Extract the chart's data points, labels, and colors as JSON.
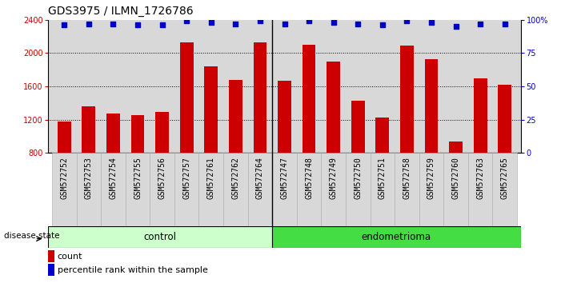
{
  "title": "GDS3975 / ILMN_1726786",
  "categories": [
    "GSM572752",
    "GSM572753",
    "GSM572754",
    "GSM572755",
    "GSM572756",
    "GSM572757",
    "GSM572761",
    "GSM572762",
    "GSM572764",
    "GSM572747",
    "GSM572748",
    "GSM572749",
    "GSM572750",
    "GSM572751",
    "GSM572758",
    "GSM572759",
    "GSM572760",
    "GSM572763",
    "GSM572765"
  ],
  "bar_values": [
    1175,
    1360,
    1270,
    1255,
    1290,
    2130,
    1840,
    1680,
    2130,
    1670,
    2100,
    1900,
    1430,
    1220,
    2090,
    1930,
    940,
    1700,
    1620
  ],
  "percentile_values": [
    96,
    97,
    97,
    96,
    96,
    99,
    98,
    97,
    99,
    97,
    99,
    98,
    97,
    96,
    99,
    98,
    95,
    97,
    97
  ],
  "bar_color": "#cc0000",
  "dot_color": "#0000cc",
  "ylim_left": [
    800,
    2400
  ],
  "ylim_right": [
    0,
    100
  ],
  "yticks_left": [
    800,
    1200,
    1600,
    2000,
    2400
  ],
  "yticks_right": [
    0,
    25,
    50,
    75,
    100
  ],
  "ytick_labels_right": [
    "0",
    "25",
    "50",
    "75",
    "100%"
  ],
  "control_count": 9,
  "endometrioma_count": 10,
  "control_color_light": "#ccffcc",
  "control_color": "#ccffcc",
  "endometrioma_color": "#44dd44",
  "group_label_control": "control",
  "group_label_endometrioma": "endometrioma",
  "disease_state_label": "disease state",
  "legend_count_label": "count",
  "legend_pct_label": "percentile rank within the sample",
  "bg_color": "#d8d8d8",
  "title_fontsize": 10,
  "tick_fontsize": 7,
  "bar_width": 0.55,
  "grid_yticks": [
    1200,
    1600,
    2000
  ]
}
